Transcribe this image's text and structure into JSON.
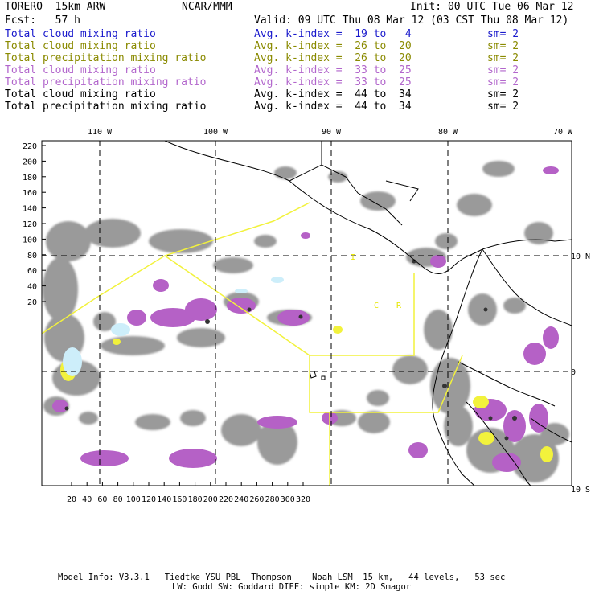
{
  "header": {
    "model": "TORERO  15km ARW",
    "center": "NCAR/MMM",
    "init": "Init: 00 UTC Tue 06 Mar 12",
    "fcst": "Fcst:   57 h",
    "valid": "Valid: 09 UTC Thu 08 Mar 12 (03 CST Thu 08 Mar 12)"
  },
  "legend": [
    {
      "field": "Total cloud mixing ratio",
      "index": "Avg. k-index =  19 to   4",
      "sm": "sm= 2",
      "color": "#1a1acc"
    },
    {
      "field": "Total cloud mixing ratio",
      "index": "Avg. k-index =  26 to  20",
      "sm": "sm= 2",
      "color": "#8a8a00"
    },
    {
      "field": "Total precipitation mixing ratio",
      "index": "Avg. k-index =  26 to  20",
      "sm": "sm= 2",
      "color": "#8a8a00"
    },
    {
      "field": "Total cloud mixing ratio",
      "index": "Avg. k-index =  33 to  25",
      "sm": "sm= 2",
      "color": "#b266cc"
    },
    {
      "field": "Total precipitation mixing ratio",
      "index": "Avg. k-index =  33 to  25",
      "sm": "sm= 2",
      "color": "#b266cc"
    },
    {
      "field": "Total cloud mixing ratio",
      "index": "Avg. k-index =  44 to  34",
      "sm": "sm= 2",
      "color": "#000000"
    },
    {
      "field": "Total precipitation mixing ratio",
      "index": "Avg. k-index =  44 to  34",
      "sm": "sm= 2",
      "color": "#000000"
    }
  ],
  "map": {
    "top_lon_labels": [
      "110 W",
      "100 W",
      "90 W",
      "80 W",
      "70 W"
    ],
    "right_lat_labels": [
      "10 N",
      "0",
      "10 S"
    ],
    "y_ticks": [
      "220",
      "200",
      "180",
      "160",
      "140",
      "120",
      "100",
      "80",
      "60",
      "40",
      "20"
    ],
    "x_ticks": [
      "20",
      "40",
      "60",
      "80",
      "100",
      "120",
      "140",
      "160",
      "180",
      "200",
      "220",
      "240",
      "260",
      "280",
      "300",
      "320"
    ],
    "region_labels": [
      "I",
      "C",
      "R"
    ],
    "colors": {
      "cloud_gray": "#9a9a9a",
      "precip_purple": "#b561c6",
      "yellow": "#f2f23c",
      "light_blue": "#cdeefa"
    }
  },
  "footer": {
    "line1": "Model Info: V3.3.1   Tiedtke YSU PBL  Thompson    Noah LSM  15 km,   44 levels,   53 sec",
    "line2": "LW: Godd SW: Goddard DIFF: simple KM: 2D Smagor"
  }
}
